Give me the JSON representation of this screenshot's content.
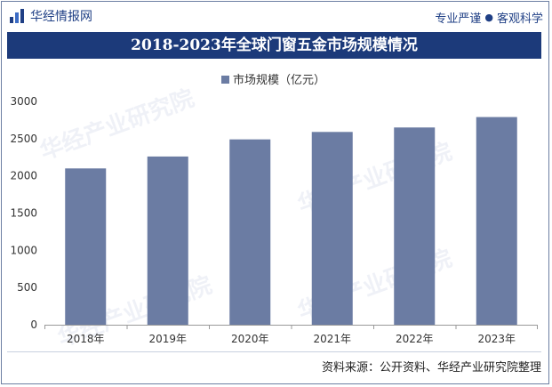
{
  "header": {
    "brand": "华经情报网",
    "tagline_left": "专业严谨",
    "tagline_right": "客观科学",
    "title": "2018-2023年全球门窗五金市场规模情况"
  },
  "footer": {
    "source": "资料来源：公开资料、华经产业研究院整理"
  },
  "watermark": "华经产业研究院",
  "colors": {
    "bar": "#6b7ca3",
    "title_band": "#1c3a7a"
  },
  "chart_data": {
    "type": "bar",
    "title": "2018-2023年全球门窗五金市场规模情况",
    "categories": [
      "2018年",
      "2019年",
      "2020年",
      "2021年",
      "2022年",
      "2023年"
    ],
    "series": [
      {
        "name": "市场规模（亿元）",
        "values": [
          2100,
          2260,
          2490,
          2590,
          2650,
          2790
        ]
      }
    ],
    "yticks": [
      0,
      500,
      1000,
      1500,
      2000,
      2500,
      3000
    ],
    "ylim": [
      0,
      3000
    ],
    "xlabel": "",
    "ylabel": "",
    "legend": "top-center",
    "grid": false
  }
}
